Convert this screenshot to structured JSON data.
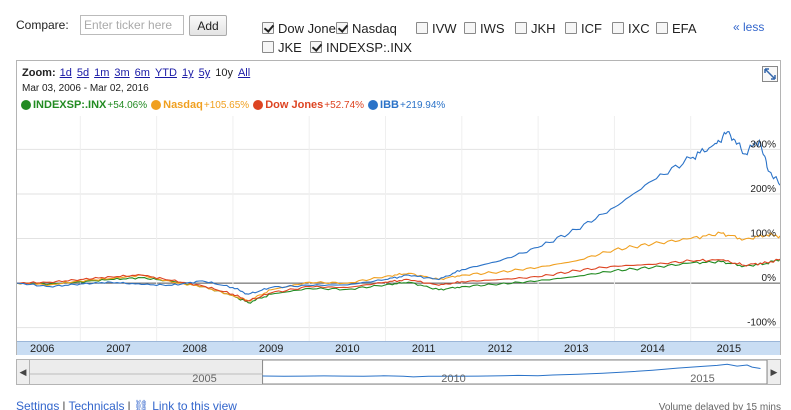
{
  "compare": {
    "label": "Compare:",
    "placeholder": "Enter ticker here",
    "add_label": "Add",
    "less_label": "« less",
    "tickers": [
      {
        "label": "Dow Jones",
        "checked": true
      },
      {
        "label": "Nasdaq",
        "checked": true
      },
      {
        "label": "IVW",
        "checked": false
      },
      {
        "label": "IWS",
        "checked": false
      },
      {
        "label": "JKH",
        "checked": false
      },
      {
        "label": "ICF",
        "checked": false
      },
      {
        "label": "IXC",
        "checked": false
      },
      {
        "label": "EFA",
        "checked": false
      },
      {
        "label": "JKE",
        "checked": false
      },
      {
        "label": "INDEXSP:.INX",
        "checked": true
      }
    ]
  },
  "zoom": {
    "label": "Zoom:",
    "options": [
      "1d",
      "5d",
      "1m",
      "3m",
      "6m",
      "YTD",
      "1y",
      "5y",
      "10y",
      "All"
    ],
    "current": "10y"
  },
  "date_range": "Mar 03, 2006  -  Mar 02, 2016",
  "legend": [
    {
      "name": "INDEXSP:.INX",
      "pct": "+54.06%",
      "color": "#228b22"
    },
    {
      "name": "Nasdaq",
      "pct": "+105.65%",
      "color": "#f0a020"
    },
    {
      "name": "Dow Jones",
      "pct": "+52.74%",
      "color": "#dd4422"
    },
    {
      "name": "IBB",
      "pct": "+219.94%",
      "color": "#2b73c8"
    }
  ],
  "chart_data": {
    "type": "line",
    "y_unit": "%",
    "ylim": [
      -130,
      375
    ],
    "yticks": [
      {
        "value": 300,
        "label": "300%"
      },
      {
        "value": 200,
        "label": "200%"
      },
      {
        "value": 100,
        "label": "100%"
      },
      {
        "value": 0,
        "label": "0%"
      },
      {
        "value": -100,
        "label": "-100%"
      }
    ],
    "x_range": [
      2006.17,
      2016.17
    ],
    "years": [
      "2006",
      "2007",
      "2008",
      "2009",
      "2010",
      "2011",
      "2012",
      "2013",
      "2014",
      "2015"
    ],
    "series": [
      {
        "name": "INDEXSP:.INX",
        "color": "#228b22",
        "points": [
          [
            2006.17,
            0
          ],
          [
            2006.6,
            -2
          ],
          [
            2007.0,
            3
          ],
          [
            2007.4,
            8
          ],
          [
            2007.8,
            12
          ],
          [
            2008.2,
            4
          ],
          [
            2008.6,
            -8
          ],
          [
            2009.0,
            -28
          ],
          [
            2009.2,
            -44
          ],
          [
            2009.5,
            -25
          ],
          [
            2010.0,
            -12
          ],
          [
            2010.5,
            -14
          ],
          [
            2011.0,
            -4
          ],
          [
            2011.3,
            2
          ],
          [
            2011.7,
            -15
          ],
          [
            2012.0,
            -8
          ],
          [
            2012.5,
            -2
          ],
          [
            2013.0,
            5
          ],
          [
            2013.5,
            15
          ],
          [
            2014.0,
            28
          ],
          [
            2014.5,
            35
          ],
          [
            2015.0,
            45
          ],
          [
            2015.4,
            48
          ],
          [
            2015.7,
            38
          ],
          [
            2016.0,
            44
          ],
          [
            2016.17,
            54
          ]
        ]
      },
      {
        "name": "Nasdaq",
        "color": "#f0a020",
        "points": [
          [
            2006.17,
            0
          ],
          [
            2006.6,
            -4
          ],
          [
            2007.0,
            5
          ],
          [
            2007.4,
            10
          ],
          [
            2007.8,
            18
          ],
          [
            2008.2,
            2
          ],
          [
            2008.6,
            -8
          ],
          [
            2009.0,
            -28
          ],
          [
            2009.2,
            -40
          ],
          [
            2009.5,
            -15
          ],
          [
            2010.0,
            2
          ],
          [
            2010.5,
            0
          ],
          [
            2011.0,
            15
          ],
          [
            2011.3,
            22
          ],
          [
            2011.7,
            8
          ],
          [
            2012.0,
            18
          ],
          [
            2012.5,
            25
          ],
          [
            2013.0,
            35
          ],
          [
            2013.5,
            50
          ],
          [
            2014.0,
            75
          ],
          [
            2014.5,
            88
          ],
          [
            2015.0,
            100
          ],
          [
            2015.4,
            112
          ],
          [
            2015.7,
            98
          ],
          [
            2016.0,
            108
          ],
          [
            2016.17,
            106
          ]
        ]
      },
      {
        "name": "Dow Jones",
        "color": "#dd4422",
        "points": [
          [
            2006.17,
            0
          ],
          [
            2006.6,
            2
          ],
          [
            2007.0,
            8
          ],
          [
            2007.4,
            14
          ],
          [
            2007.8,
            18
          ],
          [
            2008.2,
            6
          ],
          [
            2008.6,
            -6
          ],
          [
            2009.0,
            -25
          ],
          [
            2009.2,
            -40
          ],
          [
            2009.5,
            -22
          ],
          [
            2010.0,
            -8
          ],
          [
            2010.5,
            -10
          ],
          [
            2011.0,
            2
          ],
          [
            2011.3,
            8
          ],
          [
            2011.7,
            -5
          ],
          [
            2012.0,
            3
          ],
          [
            2012.5,
            8
          ],
          [
            2013.0,
            14
          ],
          [
            2013.5,
            28
          ],
          [
            2014.0,
            38
          ],
          [
            2014.5,
            42
          ],
          [
            2015.0,
            50
          ],
          [
            2015.4,
            52
          ],
          [
            2015.7,
            40
          ],
          [
            2016.0,
            46
          ],
          [
            2016.17,
            53
          ]
        ]
      },
      {
        "name": "IBB",
        "color": "#2b73c8",
        "points": [
          [
            2006.17,
            0
          ],
          [
            2006.6,
            -8
          ],
          [
            2007.0,
            -2
          ],
          [
            2007.4,
            2
          ],
          [
            2007.8,
            -3
          ],
          [
            2008.2,
            -5
          ],
          [
            2008.6,
            5
          ],
          [
            2009.0,
            -10
          ],
          [
            2009.2,
            -25
          ],
          [
            2009.5,
            -10
          ],
          [
            2010.0,
            -5
          ],
          [
            2010.5,
            -4
          ],
          [
            2011.0,
            8
          ],
          [
            2011.3,
            18
          ],
          [
            2011.7,
            8
          ],
          [
            2012.0,
            30
          ],
          [
            2012.5,
            50
          ],
          [
            2013.0,
            80
          ],
          [
            2013.5,
            120
          ],
          [
            2014.0,
            170
          ],
          [
            2014.5,
            230
          ],
          [
            2015.0,
            280
          ],
          [
            2015.3,
            310
          ],
          [
            2015.5,
            340
          ],
          [
            2015.7,
            290
          ],
          [
            2015.9,
            320
          ],
          [
            2016.0,
            260
          ],
          [
            2016.17,
            220
          ]
        ]
      }
    ]
  },
  "navigator": {
    "years": [
      "2005",
      "2010",
      "2015"
    ]
  },
  "footer": {
    "settings": "Settings",
    "technicals": "Technicals",
    "link": "Link to this view",
    "note": "Volume delayed by 15 mins"
  }
}
